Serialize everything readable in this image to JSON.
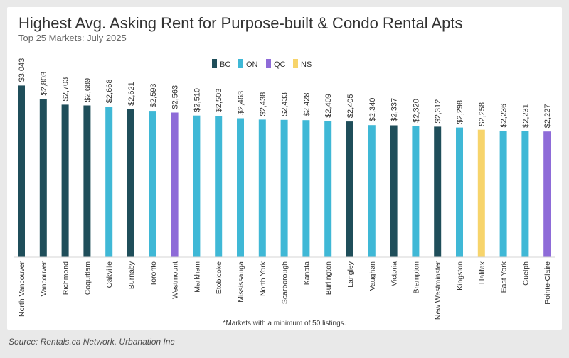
{
  "page": {
    "footnote": "*Markets with a minimum of 50 listings.",
    "source": "Source: Rentals.ca Network, Urbanation Inc"
  },
  "colors": {
    "BC": "#1f4e5a",
    "ON": "#3fb8d6",
    "QC": "#8e6bd8",
    "NS": "#f7d46b",
    "background": "#e9e9e9",
    "card": "#ffffff"
  },
  "chart_data": {
    "type": "bar",
    "title": "Highest Avg. Asking Rent for Purpose-built & Condo Rental Apts",
    "subtitle": "Top 25 Markets: July 2025",
    "legend": {
      "placement": "top-center",
      "entries": [
        "BC",
        "ON",
        "QC",
        "NS"
      ]
    },
    "ylim": [
      0,
      3300
    ],
    "grid": false,
    "categories": [
      "North Vancouver",
      "Vancouver",
      "Richmond",
      "Coquitlam",
      "Oakville",
      "Burnaby",
      "Toronto",
      "Westmount",
      "Markham",
      "Etobicoke",
      "Mississauga",
      "North York",
      "Scarborough",
      "Kanata",
      "Burlington",
      "Langley",
      "Vaughan",
      "Victoria",
      "Brampton",
      "New Westminster",
      "Kingston",
      "Halifax",
      "East York",
      "Guelph",
      "Pointe-Claire"
    ],
    "values": [
      3043,
      2803,
      2703,
      2689,
      2668,
      2621,
      2593,
      2563,
      2510,
      2503,
      2463,
      2438,
      2433,
      2428,
      2409,
      2405,
      2340,
      2337,
      2320,
      2312,
      2298,
      2258,
      2236,
      2231,
      2227
    ],
    "data_labels": [
      "$3,043",
      "$2,803",
      "$2,703",
      "$2,689",
      "$2,668",
      "$2,621",
      "$2,593",
      "$2,563",
      "$2,510",
      "$2,503",
      "$2,463",
      "$2,438",
      "$2,433",
      "$2,428",
      "$2,409",
      "$2,405",
      "$2,340",
      "$2,337",
      "$2,320",
      "$2,312",
      "$2,298",
      "$2,258",
      "$2,236",
      "$2,231",
      "$2,227"
    ],
    "groups": [
      "BC",
      "BC",
      "BC",
      "BC",
      "ON",
      "BC",
      "ON",
      "QC",
      "ON",
      "ON",
      "ON",
      "ON",
      "ON",
      "ON",
      "ON",
      "BC",
      "ON",
      "BC",
      "ON",
      "BC",
      "ON",
      "NS",
      "ON",
      "ON",
      "QC"
    ]
  }
}
